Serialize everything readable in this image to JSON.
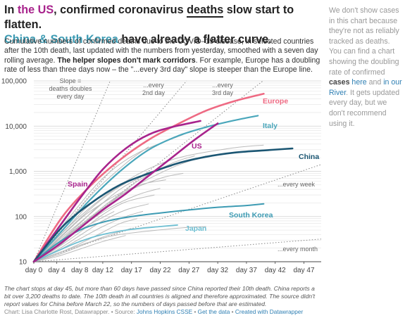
{
  "header": {
    "title_parts": [
      "In ",
      "the US",
      ", confirmed coronavirus ",
      "deaths",
      " slow start to flatten."
    ],
    "title_line2_parts": [
      "China & South Korea",
      " have already a flatter curve."
    ],
    "description_parts": [
      "Cumulative numbers of confirmed deaths due to the COVID–19 disease, in selected countries after the 10th death, last updated with the numbers from yesterday, smoothed with a seven day rolling average. ",
      "The helper slopes don't mark corridors",
      ". For example, Europe has a doubling rate of less than three days now – the \"...every 3rd day\" slope is steeper than the Europe line."
    ]
  },
  "sidebar": {
    "parts": [
      "We don't show cases in this chart because they're not as reliably tracked as deaths. You can find a chart showing the doubling rate of confirmed ",
      "cases",
      " ",
      "here",
      " and ",
      "in our River",
      ". It gets updated every day, but we don't recommend using it."
    ]
  },
  "footer": {
    "note": "The chart stops at day 45, but more than 60 days have passed since China reported their 10th death. China reports a bit over 3,200 deaths to date. The 10th death in all countries is aligned and therefore approximated. The source didn't report values for China before March 22, so the numbers of days passed before that are estimated.",
    "credit_parts": [
      "Chart: Lisa Charlotte Rost, Datawrapper. • Source: ",
      "Johns Hopkins CSSE",
      " • ",
      "Get the data",
      " • ",
      "Created with Datawrapper"
    ]
  },
  "colors": {
    "us": "#a8238c",
    "europe": "#ee6a83",
    "italy": "#4aa7bb",
    "china": "#1b5673",
    "south_korea": "#3d9bb3",
    "japan": "#6dbfd2",
    "spain": "#a8238c",
    "other": "#bbbbbb",
    "grid": "#e3e3e3"
  },
  "chart_data": {
    "type": "line",
    "y_scale": "log",
    "ylim": [
      10,
      100000
    ],
    "xlim": [
      0,
      50
    ],
    "x_ticks": [
      0,
      4,
      8,
      12,
      17,
      22,
      27,
      32,
      37,
      42,
      47
    ],
    "x_tick_labels": [
      "day 0",
      "day 4",
      "day 8",
      "day 12",
      "day 17",
      "day 22",
      "day 27",
      "day 32",
      "day 37",
      "day 42",
      "day 47"
    ],
    "y_ticks": [
      10,
      100,
      1000,
      10000,
      100000
    ],
    "y_tick_labels": [
      "10",
      "100",
      "1,000",
      "10,000",
      "100,000"
    ],
    "grid": true,
    "helper_slopes": [
      {
        "label": "Slope = deaths doubles every day",
        "doubling_days": 1,
        "label_lines": [
          "Slope =",
          "deaths doubles",
          "every day"
        ]
      },
      {
        "label": "...every 2nd day",
        "doubling_days": 2,
        "label_lines": [
          "...every",
          "2nd day"
        ]
      },
      {
        "label": "...every 3rd day",
        "doubling_days": 3,
        "label_lines": [
          "...every",
          "3rd day"
        ]
      },
      {
        "label": "...every week",
        "doubling_days": 7,
        "label_lines": [
          "...every week"
        ]
      },
      {
        "label": "...every month",
        "doubling_days": 30,
        "label_lines": [
          "...every month"
        ]
      }
    ],
    "series": [
      {
        "name": "Europe",
        "key": "europe",
        "x": [
          0,
          5,
          10,
          15,
          20,
          25,
          30,
          35,
          40
        ],
        "y": [
          10,
          100,
          500,
          1800,
          5000,
          11000,
          22000,
          36000,
          52000
        ]
      },
      {
        "name": "Italy",
        "key": "italy",
        "x": [
          0,
          5,
          10,
          15,
          20,
          25,
          30,
          35,
          39
        ],
        "y": [
          10,
          50,
          250,
          1000,
          3000,
          6000,
          9500,
          13500,
          17000
        ]
      },
      {
        "name": "US",
        "key": "us",
        "x": [
          0,
          4,
          8,
          12,
          16,
          20,
          24,
          28,
          32
        ],
        "y": [
          10,
          22,
          55,
          140,
          320,
          800,
          2000,
          5000,
          11500
        ]
      },
      {
        "name": "Spain",
        "key": "spain",
        "x": [
          0,
          4,
          8,
          12,
          16,
          20,
          24,
          29
        ],
        "y": [
          10,
          50,
          250,
          1100,
          3200,
          6500,
          9500,
          13000
        ]
      },
      {
        "name": "China",
        "key": "china",
        "x": [
          0,
          5,
          10,
          15,
          20,
          25,
          30,
          35,
          40,
          45
        ],
        "y": [
          10,
          60,
          200,
          500,
          900,
          1500,
          2100,
          2600,
          2900,
          3200
        ]
      },
      {
        "name": "South Korea",
        "key": "south_korea",
        "x": [
          0,
          4,
          8,
          12,
          17,
          22,
          27,
          32,
          37,
          40
        ],
        "y": [
          10,
          25,
          50,
          75,
          100,
          120,
          140,
          160,
          175,
          190
        ]
      },
      {
        "name": "Japan",
        "key": "japan",
        "x": [
          0,
          4,
          8,
          12,
          17,
          22,
          25
        ],
        "y": [
          10,
          17,
          28,
          40,
          52,
          60,
          65
        ]
      }
    ],
    "other_countries": [
      [
        [
          0,
          8,
          16,
          24,
          34,
          40
        ],
        [
          10,
          100,
          600,
          1800,
          3200,
          3800
        ]
      ],
      [
        [
          0,
          8,
          16,
          24,
          30
        ],
        [
          10,
          60,
          350,
          1200,
          2200
        ]
      ],
      [
        [
          0,
          6,
          12,
          18,
          26
        ],
        [
          10,
          90,
          700,
          2500,
          6500
        ]
      ],
      [
        [
          0,
          5,
          10,
          16,
          20
        ],
        [
          10,
          50,
          300,
          1500,
          3500
        ]
      ],
      [
        [
          0,
          6,
          12,
          18,
          24,
          28
        ],
        [
          10,
          40,
          150,
          600,
          1500,
          2200
        ]
      ],
      [
        [
          0,
          5,
          10,
          15,
          20,
          24
        ],
        [
          10,
          35,
          120,
          400,
          900,
          1300
        ]
      ],
      [
        [
          0,
          5,
          10,
          15,
          22,
          26
        ],
        [
          10,
          30,
          100,
          300,
          700,
          900
        ]
      ],
      [
        [
          0,
          4,
          8,
          12,
          18,
          23
        ],
        [
          10,
          25,
          70,
          200,
          480,
          650
        ]
      ],
      [
        [
          0,
          4,
          8,
          13,
          18,
          22
        ],
        [
          10,
          20,
          55,
          150,
          300,
          420
        ]
      ],
      [
        [
          0,
          4,
          8,
          12,
          16,
          21
        ],
        [
          10,
          20,
          45,
          110,
          210,
          300
        ]
      ],
      [
        [
          0,
          4,
          8,
          12,
          16,
          20
        ],
        [
          10,
          18,
          38,
          80,
          140,
          190
        ]
      ],
      [
        [
          0,
          4,
          8,
          12,
          16,
          19
        ],
        [
          10,
          17,
          32,
          60,
          100,
          130
        ]
      ],
      [
        [
          0,
          4,
          8,
          12,
          15,
          18
        ],
        [
          10,
          15,
          25,
          45,
          70,
          90
        ]
      ],
      [
        [
          0,
          4,
          8,
          12,
          17
        ],
        [
          10,
          14,
          22,
          35,
          55
        ]
      ],
      [
        [
          0,
          4,
          8,
          12,
          16
        ],
        [
          10,
          13,
          19,
          28,
          38
        ]
      ],
      [
        [
          0,
          5,
          10,
          15,
          25,
          30
        ],
        [
          10,
          17,
          28,
          40,
          55,
          60
        ]
      ],
      [
        [
          0,
          3,
          6,
          9,
          12
        ],
        [
          10,
          25,
          60,
          150,
          300
        ]
      ],
      [
        [
          0,
          3,
          6,
          9,
          13
        ],
        [
          10,
          22,
          50,
          110,
          240
        ]
      ],
      [
        [
          0,
          3,
          6,
          10,
          14
        ],
        [
          10,
          18,
          35,
          70,
          130
        ]
      ],
      [
        [
          0,
          4,
          8,
          12,
          16,
          20
        ],
        [
          10,
          30,
          90,
          250,
          550,
          950
        ]
      ]
    ]
  }
}
